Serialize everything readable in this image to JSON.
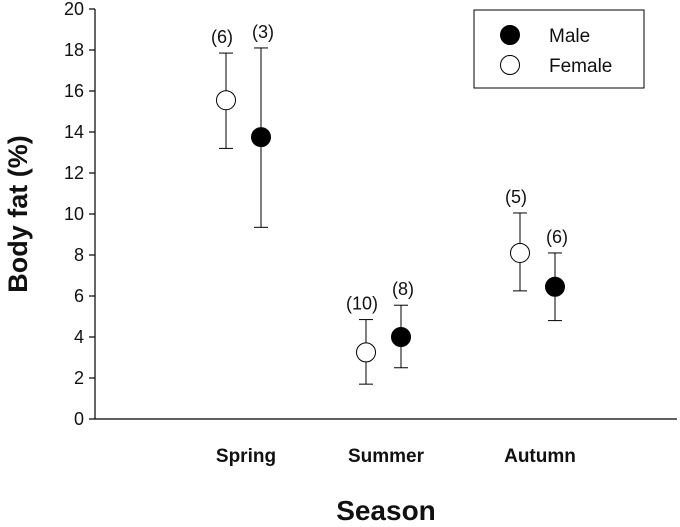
{
  "chart_data": {
    "type": "scatter",
    "xlabel": "Season",
    "ylabel": "Body fat (%)",
    "ylim": [
      0,
      20
    ],
    "yticks": [
      "0",
      "2",
      "4",
      "6",
      "8",
      "10",
      "12",
      "14",
      "16",
      "18",
      "20"
    ],
    "categories": [
      "Spring",
      "Summer",
      "Autumn"
    ],
    "grid": false,
    "legend_position": "top-right",
    "series": [
      {
        "name": "Male",
        "marker": "filled-circle",
        "color": "#000000",
        "values": [
          13.75,
          4.0,
          6.45
        ],
        "err_low": [
          9.35,
          2.5,
          4.8
        ],
        "err_high": [
          18.1,
          5.55,
          8.1
        ],
        "n_labels": [
          "(3)",
          "(8)",
          "(6)"
        ]
      },
      {
        "name": "Female",
        "marker": "open-circle",
        "color": "#000000",
        "values": [
          15.55,
          3.25,
          8.1
        ],
        "err_low": [
          13.2,
          1.7,
          6.25
        ],
        "err_high": [
          17.85,
          4.85,
          10.05
        ],
        "n_labels": [
          "(6)",
          "(10)",
          "(5)"
        ]
      }
    ]
  }
}
